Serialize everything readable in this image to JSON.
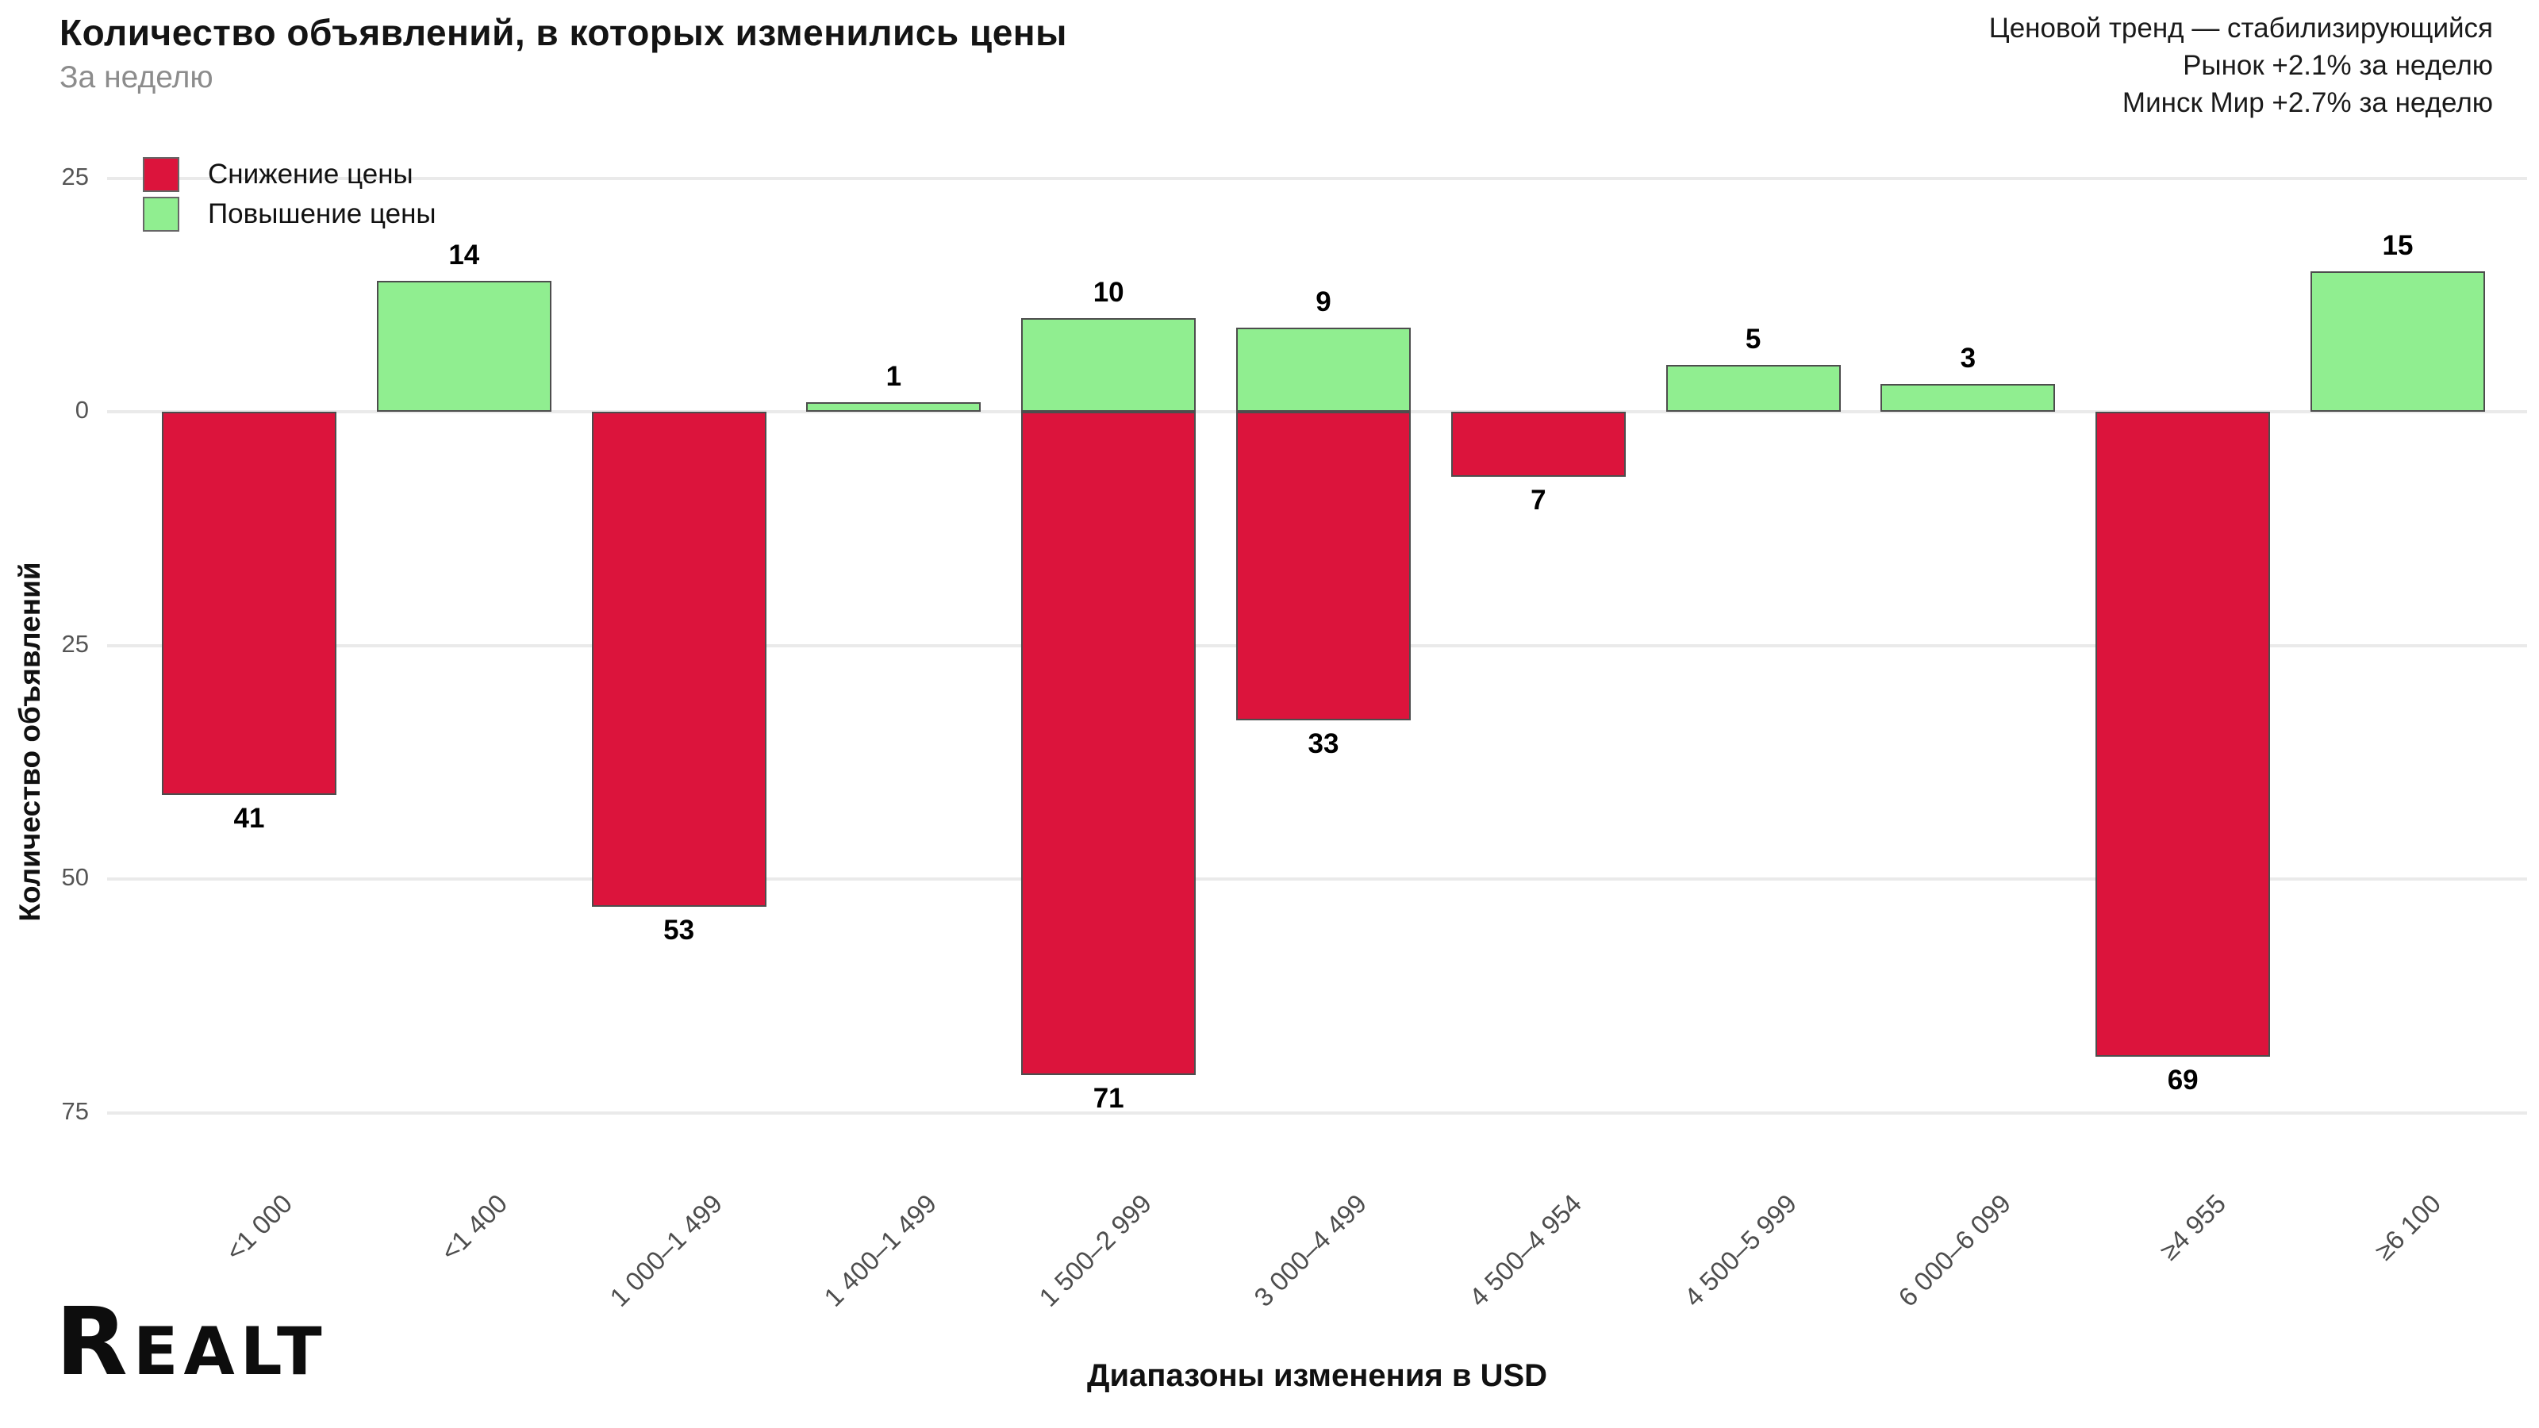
{
  "header": {
    "title": "Количество объявлений, в которых изменились цены",
    "subtitle": "За неделю",
    "trend_lines": [
      "Ценовой тренд — стабилизирующийся",
      "Рынок +2.1% за неделю",
      "Минск Мир +2.7% за неделю"
    ]
  },
  "legend": [
    {
      "label": "Снижение цены",
      "color": "#DC143C"
    },
    {
      "label": "Повышение цены",
      "color": "#90EE90"
    }
  ],
  "chart_data": {
    "type": "bar",
    "title": "Количество объявлений, в которых изменились цены",
    "subtitle": "За неделю",
    "xlabel": "Диапазоны изменения в USD",
    "ylabel": "Количество объявлений",
    "grid": true,
    "legend_position": "top-left",
    "ylim": [
      -78,
      27
    ],
    "yticks": [
      25,
      0,
      -25,
      -50,
      -75
    ],
    "ytick_labels": [
      "25",
      "0",
      "25",
      "50",
      "75"
    ],
    "categories": [
      "<1 000",
      "<1 400",
      "1 000–1 499",
      "1 400–1 499",
      "1 500–2 999",
      "3 000–4 499",
      "4 500–4 954",
      "4 500–5 999",
      "6 000–6 099",
      "≥4 955",
      "≥6 100"
    ],
    "series": [
      {
        "name": "Снижение цены",
        "color": "#DC143C",
        "values": [
          -41,
          0,
          -53,
          0,
          -71,
          -33,
          -7,
          0,
          0,
          -69,
          0
        ]
      },
      {
        "name": "Повышение цены",
        "color": "#90EE90",
        "values": [
          0,
          14,
          0,
          1,
          10,
          9,
          0,
          5,
          3,
          0,
          15
        ]
      }
    ],
    "bar_value_labels": [
      41,
      14,
      53,
      1,
      10,
      71,
      9,
      33,
      7,
      5,
      3,
      69,
      15
    ]
  },
  "footer": {
    "logo": "Realt"
  }
}
